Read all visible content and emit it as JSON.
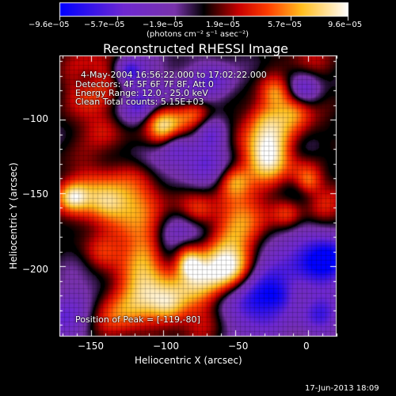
{
  "colorbar": {
    "tick_labels": [
      "−9.6e−05",
      "−5.7e−05",
      "−1.9e−05",
      "1.9e−05",
      "5.7e−05",
      "9.6e−05"
    ],
    "unit_label": "(photons cm⁻² s⁻¹ asec⁻²)"
  },
  "image": {
    "title": "Reconstructed RHESSI Image",
    "info_lines": [
      "4-May-2004 16:56:22.000 to 17:02:22.000",
      "Detectors: 4F 5F 6F 7F 8F, Att 0",
      "Energy Range: 12.0 - 25.0 keV",
      "Clean     Total counts: 5.15E+03"
    ],
    "peak_label": "Position of Peak = [-119,-80]",
    "x_axis": {
      "label": "Heliocentric X (arcsec)",
      "ticks": [
        -150,
        -100,
        -50,
        0
      ],
      "tick_labels": [
        "−150",
        "−100",
        "−50",
        "0"
      ],
      "range": [
        -172,
        20
      ]
    },
    "y_axis": {
      "label": "Heliocentric Y (arcsec)",
      "ticks": [
        -100,
        -150,
        -200
      ],
      "tick_labels": [
        "−100",
        "−150",
        "−200"
      ],
      "range": [
        -248,
        -56
      ]
    },
    "timestamp": "17-Jun-2013 18:09"
  }
}
